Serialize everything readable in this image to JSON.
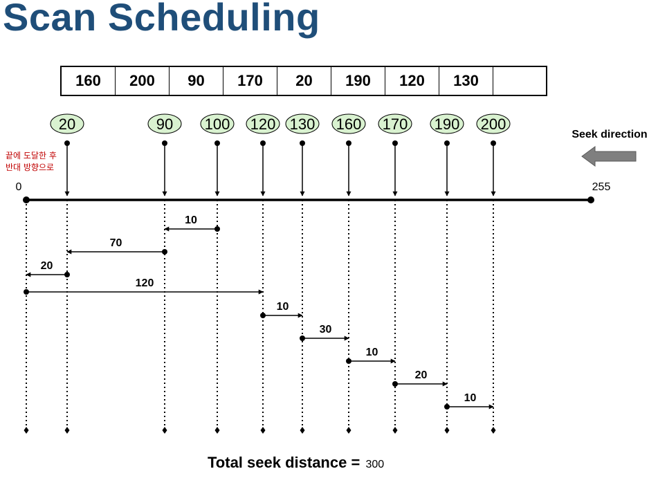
{
  "title": "Scan Scheduling",
  "queue": [
    "160",
    "200",
    "90",
    "170",
    "20",
    "190",
    "120",
    "130",
    ""
  ],
  "head_start": 100,
  "axis": {
    "min": 0,
    "max": 255,
    "min_label": "0",
    "max_label": "255"
  },
  "requests": [
    "20",
    "90",
    "100",
    "120",
    "130",
    "160",
    "170",
    "190",
    "200"
  ],
  "seek_direction_label": "Seek direction",
  "end_note": [
    "끝에 도달한 후",
    "반대 방향으로"
  ],
  "movements": [
    {
      "from": 100,
      "to": 90,
      "distance": "10"
    },
    {
      "from": 90,
      "to": 20,
      "distance": "70"
    },
    {
      "from": 20,
      "to": 0,
      "distance": "20"
    },
    {
      "from": 0,
      "to": 120,
      "distance": "120"
    },
    {
      "from": 120,
      "to": 130,
      "distance": "10"
    },
    {
      "from": 130,
      "to": 160,
      "distance": "30"
    },
    {
      "from": 160,
      "to": 170,
      "distance": "10"
    },
    {
      "from": 170,
      "to": 190,
      "distance": "20"
    },
    {
      "from": 190,
      "to": 200,
      "distance": "10"
    }
  ],
  "total": {
    "label": "Total seek distance =",
    "value": "300"
  },
  "colors": {
    "title": "#1f4e79",
    "request_fill": "#d9f2d0",
    "arrow_gray": "#7f7f7f",
    "note": "#c00000"
  }
}
